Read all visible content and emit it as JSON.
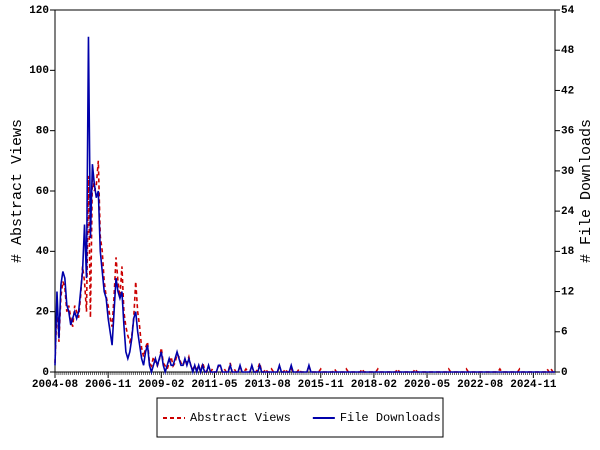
{
  "chart_data": {
    "type": "line",
    "x": [
      "2004-08",
      "2004-09",
      "2004-10",
      "2004-11",
      "2004-12",
      "2005-01",
      "2005-02",
      "2005-03",
      "2005-04",
      "2005-05",
      "2005-06",
      "2005-07",
      "2005-08",
      "2005-09",
      "2005-10",
      "2005-11",
      "2005-12",
      "2006-01",
      "2006-02",
      "2006-03",
      "2006-04",
      "2006-05",
      "2006-06",
      "2006-07",
      "2006-08",
      "2006-09",
      "2006-10",
      "2006-11",
      "2006-12",
      "2007-01",
      "2007-02",
      "2007-03",
      "2007-04",
      "2007-05",
      "2007-06",
      "2007-07",
      "2007-08",
      "2007-09",
      "2007-10",
      "2007-11",
      "2007-12",
      "2008-01",
      "2008-02",
      "2008-03",
      "2008-04",
      "2008-05",
      "2008-06",
      "2008-07",
      "2008-08",
      "2008-09",
      "2008-10",
      "2008-11",
      "2008-12",
      "2009-01",
      "2009-02",
      "2009-03",
      "2009-04",
      "2009-05",
      "2009-06",
      "2009-07",
      "2009-08",
      "2009-09",
      "2009-10",
      "2009-11",
      "2009-12",
      "2010-01",
      "2010-02",
      "2010-03",
      "2010-04",
      "2010-05",
      "2010-06",
      "2010-07",
      "2010-08",
      "2010-09",
      "2010-10",
      "2010-11",
      "2010-12",
      "2011-01",
      "2011-02",
      "2011-03",
      "2011-04",
      "2011-05",
      "2011-06",
      "2011-07",
      "2011-08",
      "2011-09",
      "2011-10",
      "2011-11",
      "2011-12",
      "2012-01",
      "2012-02",
      "2012-03",
      "2012-04",
      "2012-05",
      "2012-06",
      "2012-07",
      "2012-08",
      "2012-09",
      "2012-10",
      "2012-11",
      "2012-12",
      "2013-01",
      "2013-02",
      "2013-03",
      "2013-04",
      "2013-05",
      "2013-06",
      "2013-07",
      "2013-08",
      "2013-09",
      "2013-10",
      "2013-11",
      "2013-12",
      "2014-01",
      "2014-02",
      "2014-03",
      "2014-04",
      "2014-05",
      "2014-06",
      "2014-07",
      "2014-08",
      "2014-09",
      "2014-10",
      "2014-11",
      "2014-12",
      "2015-01",
      "2015-02",
      "2015-03",
      "2015-04",
      "2015-05",
      "2015-06",
      "2015-07",
      "2015-08",
      "2015-09",
      "2015-10",
      "2015-11",
      "2015-12",
      "2016-01",
      "2016-02",
      "2016-03",
      "2016-04",
      "2016-05",
      "2016-06",
      "2016-07",
      "2016-08",
      "2016-09",
      "2016-10",
      "2016-11",
      "2016-12",
      "2017-01",
      "2017-02",
      "2017-03",
      "2017-04",
      "2017-05",
      "2017-06",
      "2017-07",
      "2017-08",
      "2017-09",
      "2017-10",
      "2017-11",
      "2017-12",
      "2018-01",
      "2018-02",
      "2018-03",
      "2018-04",
      "2018-05",
      "2018-06",
      "2018-07",
      "2018-08",
      "2018-09",
      "2018-10",
      "2018-11",
      "2018-12",
      "2019-01",
      "2019-02",
      "2019-03",
      "2019-04",
      "2019-05",
      "2019-06",
      "2019-07",
      "2019-08",
      "2019-09",
      "2019-10",
      "2019-11",
      "2019-12",
      "2020-01",
      "2020-02",
      "2020-03",
      "2020-04",
      "2020-05",
      "2020-06",
      "2020-07",
      "2020-08",
      "2020-09",
      "2020-10",
      "2020-11",
      "2020-12",
      "2021-01",
      "2021-02",
      "2021-03",
      "2021-04",
      "2021-05",
      "2021-06",
      "2021-07",
      "2021-08",
      "2021-09",
      "2021-10",
      "2021-11",
      "2021-12",
      "2022-01",
      "2022-02",
      "2022-03",
      "2022-04",
      "2022-05",
      "2022-06",
      "2022-07",
      "2022-08",
      "2022-09",
      "2022-10",
      "2022-11",
      "2022-12",
      "2023-01",
      "2023-02",
      "2023-03",
      "2023-04",
      "2023-05",
      "2023-06",
      "2023-07",
      "2023-08",
      "2023-09",
      "2023-10",
      "2023-11",
      "2023-12",
      "2024-01",
      "2024-02",
      "2024-03",
      "2024-04",
      "2024-05",
      "2024-06",
      "2024-07",
      "2024-08",
      "2024-09",
      "2024-10",
      "2024-11",
      "2024-12",
      "2025-01",
      "2025-02",
      "2025-03",
      "2025-04",
      "2025-05",
      "2025-06",
      "2025-07",
      "2025-08",
      "2025-09",
      "2025-10"
    ],
    "xticks": [
      "2004-08",
      "2006-11",
      "2009-02",
      "2011-05",
      "2013-08",
      "2015-11",
      "2018-02",
      "2020-05",
      "2022-08",
      "2024-11"
    ],
    "y_label": "# Abstract Views",
    "y2_label": "# File Downloads",
    "ylim": [
      0,
      120
    ],
    "yticks": [
      0,
      20,
      40,
      60,
      80,
      100,
      120
    ],
    "y2lim": [
      0,
      54
    ],
    "y2ticks": [
      0,
      6,
      12,
      18,
      24,
      30,
      36,
      42,
      48,
      54
    ],
    "legend": "bottom",
    "series": [
      {
        "name": "Abstract Views",
        "color": "#cc0000",
        "line_style": "dashed",
        "axis": "y",
        "values": [
          3,
          22,
          10,
          25,
          30,
          28,
          20,
          22,
          18,
          15,
          22,
          20,
          18,
          25,
          35,
          30,
          20,
          65,
          18,
          65,
          60,
          62,
          70,
          45,
          40,
          30,
          25,
          22,
          18,
          15,
          25,
          38,
          30,
          25,
          35,
          20,
          15,
          12,
          10,
          12,
          18,
          30,
          20,
          15,
          8,
          5,
          8,
          10,
          3,
          2,
          5,
          3,
          2,
          4,
          8,
          3,
          2,
          1,
          3,
          5,
          2,
          3,
          6,
          5,
          3,
          2,
          4,
          3,
          5,
          2,
          1,
          2,
          1,
          2,
          0,
          3,
          1,
          0,
          2,
          0,
          1,
          0,
          0,
          2,
          2,
          0,
          1,
          0,
          0,
          3,
          0,
          1,
          0,
          0,
          2,
          0,
          0,
          1,
          0,
          0,
          2,
          0,
          0,
          1,
          3,
          0,
          0,
          1,
          0,
          0,
          1,
          0,
          0,
          0,
          2,
          0,
          0,
          1,
          0,
          0,
          1,
          0,
          0,
          0,
          1,
          0,
          0,
          0,
          0,
          2,
          0,
          0,
          0,
          0,
          0,
          1,
          0,
          0,
          0,
          0,
          0,
          0,
          1,
          0,
          0,
          0,
          0,
          0,
          1,
          0,
          0,
          0,
          0,
          0,
          0,
          0,
          1,
          0,
          0,
          0,
          0,
          0,
          0,
          0,
          1,
          0,
          0,
          0,
          0,
          0,
          0,
          0,
          0,
          0,
          1,
          0,
          0,
          0,
          0,
          0,
          0,
          0,
          0,
          1,
          0,
          0,
          0,
          0,
          0,
          0,
          0,
          0,
          0,
          0,
          0,
          0,
          0,
          0,
          0,
          0,
          1,
          0,
          0,
          0,
          0,
          0,
          0,
          0,
          0,
          1,
          0,
          0,
          0,
          0,
          0,
          0,
          0,
          0,
          0,
          0,
          0,
          0,
          0,
          0,
          0,
          0,
          1,
          0,
          0,
          0,
          0,
          0,
          0,
          0,
          0,
          0,
          1,
          0,
          0,
          0,
          0,
          0,
          0,
          0,
          0,
          0,
          0,
          0,
          0,
          0,
          1,
          0,
          1,
          0,
          0
        ]
      },
      {
        "name": "File Downloads",
        "color": "#0000aa",
        "line_style": "solid",
        "axis": "y2",
        "values": [
          1,
          12,
          5,
          13,
          15,
          14,
          10,
          9,
          7,
          8,
          9,
          8,
          9,
          12,
          15,
          22,
          14,
          50,
          20,
          31,
          28,
          26,
          27,
          18,
          15,
          12,
          11,
          8,
          6,
          4,
          9,
          14,
          12,
          11,
          12,
          7,
          3,
          2,
          3,
          5,
          8,
          9,
          6,
          4,
          2,
          1,
          3,
          4,
          1,
          0,
          1,
          2,
          1,
          2,
          3,
          1,
          0,
          1,
          2,
          1,
          1,
          2,
          3,
          2,
          1,
          1,
          2,
          1,
          2,
          1,
          0,
          1,
          0,
          1,
          0,
          1,
          0,
          0,
          1,
          0,
          0,
          0,
          0,
          1,
          1,
          0,
          0,
          0,
          0,
          1,
          0,
          0,
          0,
          0,
          1,
          0,
          0,
          0,
          0,
          0,
          1,
          0,
          0,
          0,
          1,
          0,
          0,
          0,
          0,
          0,
          0,
          0,
          0,
          0,
          1,
          0,
          0,
          0,
          0,
          0,
          1,
          0,
          0,
          0,
          0,
          0,
          0,
          0,
          0,
          1,
          0,
          0,
          0,
          0,
          0,
          0,
          0,
          0,
          0,
          0,
          0,
          0,
          0,
          0,
          0,
          0,
          0,
          0,
          0,
          0,
          0,
          0,
          0,
          0,
          0,
          0,
          0,
          0,
          0,
          0,
          0,
          0,
          0,
          0,
          0,
          0,
          0,
          0,
          0,
          0,
          0,
          0,
          0,
          0,
          0,
          0,
          0,
          0,
          0,
          0,
          0,
          0,
          0,
          0,
          0,
          0,
          0,
          0,
          0,
          0,
          0,
          0,
          0,
          0,
          0,
          0,
          0,
          0,
          0,
          0,
          0,
          0,
          0,
          0,
          0,
          0,
          0,
          0,
          0,
          0,
          0,
          0,
          0,
          0,
          0,
          0,
          0,
          0,
          0,
          0,
          0,
          0,
          0,
          0,
          0,
          0,
          0,
          0,
          0,
          0,
          0,
          0,
          0,
          0,
          0,
          0,
          0,
          0,
          0,
          0,
          0,
          0,
          0,
          0,
          0,
          0,
          0,
          0,
          0,
          0,
          0,
          0,
          0,
          0,
          0
        ]
      }
    ]
  }
}
